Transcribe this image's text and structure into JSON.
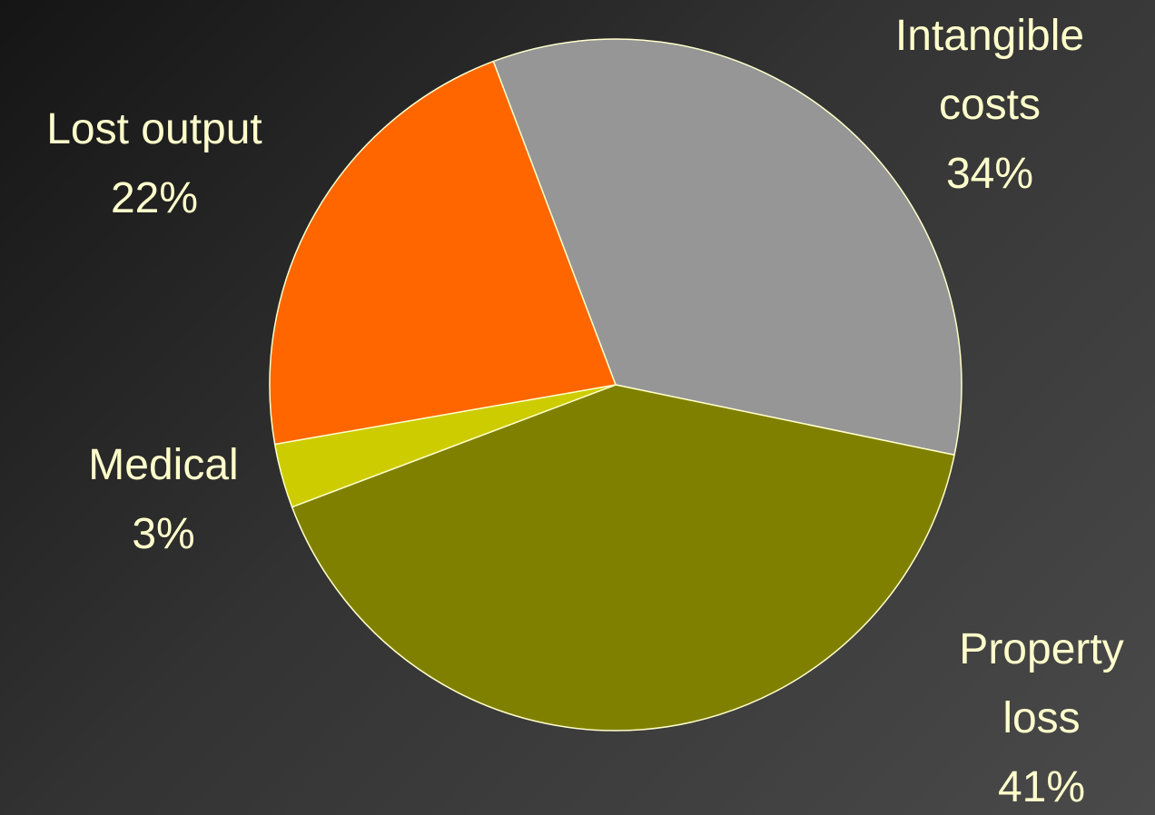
{
  "chart_data": {
    "type": "pie",
    "categories": [
      "Intangible costs",
      "Property loss",
      "Medical",
      "Lost output"
    ],
    "values": [
      34,
      41,
      3,
      22
    ],
    "value_labels": [
      "34%",
      "41%",
      "3%",
      "22%"
    ],
    "colors": [
      "#969696",
      "#808000",
      "#cccc00",
      "#ff6600"
    ]
  }
}
